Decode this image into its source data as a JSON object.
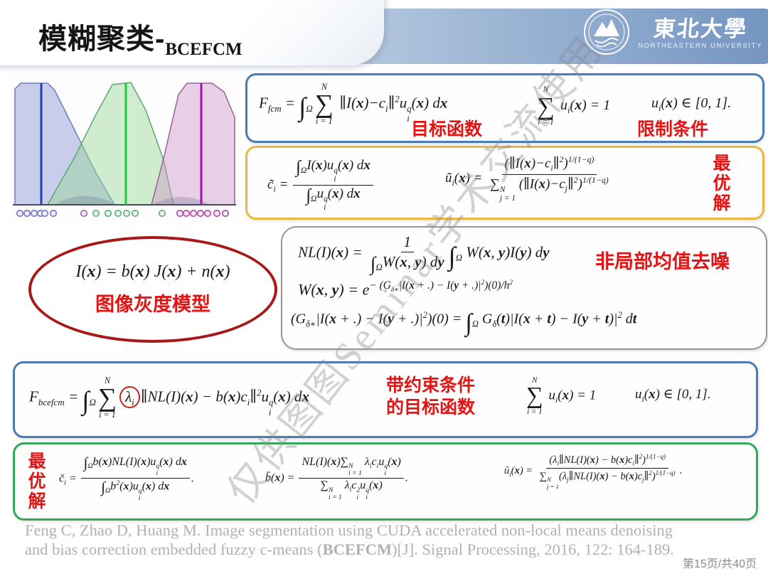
{
  "header": {
    "title": "模糊聚类-",
    "title_subscript": "BCEFCM",
    "logo": {
      "cn_name": "東北大學",
      "en_name": "NORTHEASTERN UNIVERSITY"
    }
  },
  "membership_chart": {
    "type": "area",
    "description": "three overlapping fuzzy membership functions with cluster center lines and data point markers",
    "series": [
      {
        "name": "cluster-1",
        "fill": "#8f9dd6",
        "center_line": "#2b3faf"
      },
      {
        "name": "cluster-2",
        "fill": "#9bd69b",
        "center_line": "#21c93f"
      },
      {
        "name": "cluster-3",
        "fill": "#cf9aca",
        "center_line": "#a512a5"
      }
    ]
  },
  "boxes": {
    "fcm": {
      "objective_formula": "F<sub>fcm</sub> = <span class='it'>∫</span><sub class='lo'>Ω</sub><span class='bigop'><span class='lm'>N</span><span class='op'>∑</span><span class='lm'>i = 1</span></span> ∥I(<b>x</b>)−c<sub>i</sub>∥<sup>2</sup>u<span class='ss'><span>q</span><span>i</span></span>(<b>x</b>) d<b>x</b>",
      "objective_label": "目标函数",
      "constraint_formula": "<span class='bigop'><span class='lm'>N</span><span class='op'>∑</span><span class='lm'>i = 1</span></span> u<sub>i</sub>(<b>x</b>) = 1",
      "constraint_label": "限制条件",
      "range_formula": "u<sub>i</sub>(<b>x</b>) ∈ [0, 1]."
    },
    "fcm_solution": {
      "label": "最优解",
      "c_formula": "c̃<sub>i</sub> = <span class='frac'><span class='num'><span class='sit'>∫</span><sub class='lo'>Ω</sub>I(<b>x</b>)u<span class='ss'><span>q</span><span>i</span></span>(<b>x</b>) d<b>x</b></span><span class='den'><span class='sit'>∫</span><sub class='lo'>Ω</sub>u<span class='ss'><span>q</span><span>i</span></span>(<b>x</b>) d<b>x</b></span></span>",
      "u_formula": "ũ<sub>i</sub>(<b>x</b>) = <span class='frac'><span class='num'>(∥I(<b>x</b>)−c<sub>i</sub>∥<sup>2</sup>)<sup>1/(1−q)</sup></span><span class='den'>∑<span class='ss'><span>N</span><span>j = 1</span></span> (∥I(<b>x</b>)−c<sub>j</sub>∥<sup>2</sup>)<sup>1/(1−q)</sup></span></span>"
    },
    "nlm": {
      "nl_formula": "NL(I)(<b>x</b>) = <span class='frac'><span class='num'>1</span><span class='den'><span class='sit'>∫</span><sub class='lo'>Ω</sub>W(<b>x</b>, <b>y</b>) d<b>y</b></span></span><span class='it'>∫</span><sub class='lo'>Ω</sub> W(<b>x</b>, <b>y</b>)I(<b>y</b>) d<b>y</b>",
      "label": "非局部均值去噪",
      "w_formula": "W(<b>x</b>, <b>y</b>) = e<sup class='wex'>− (G<sub>δ∗</sub>|I(<b>x</b> + .) − I(<b>y</b> + .)|<sup>2</sup>)(0)/h<sup>2</sup></sup>",
      "g_formula": "(G<sub>δ∗</sub>|I(<b>x</b> + .) − I(<b>y</b> + .)|<sup>2</sup>)(0) = <span class='it'>∫</span><sub class='lo'>Ω</sub> G<sub>δ</sub>(<b>t</b>)|I(<b>x</b> + <b>t</b>) − I(<b>y</b> + <b>t</b>)|<sup>2</sup> d<b>t</b>"
    },
    "bias_model": {
      "formula": "I(<b>x</b>) = b(<b>x</b>) J(<b>x</b>) + n(<b>x</b>)",
      "label": "图像灰度模型"
    },
    "bcefcm": {
      "formula": "F<sub>bcefcm</sub> = <span class='it'>∫</span><sub class='lo'>Ω</sub><span class='bigop'><span class='lm'>N</span><span class='op'>∑</span><span class='lm'>i = 1</span></span><span class='circ'>λ<sub>i</sub></span>∥NL(I)(<b>x</b>) − b(<b>x</b>)c<sub>i</sub>∥<sup>2</sup>u<span class='ss'><span>q</span><span>i</span></span>(<b>x</b>) d<b>x</b>",
      "label_line1": "带约束条件",
      "label_line2": "的目标函数",
      "constraint_formula": "<span class='bigop'><span class='lm'>N</span><span class='op'>∑</span><span class='lm'>i = 1</span></span> u<sub>i</sub>(<b>x</b>) = 1",
      "range_formula": "u<sub>i</sub>(<b>x</b>) ∈ [0, 1]."
    },
    "bcefcm_solution": {
      "label": "最优解",
      "c_formula": "c̆<sub>i</sub> = <span class='frac'><span class='num'><span class='sit'>∫</span><sub class='lo'>Ω</sub>b(<b>x</b>)NL(I)(<b>x</b>)u<span class='ss'><span>q</span><span>i</span></span>(<b>x</b>) d<b>x</b></span><span class='den'><span class='sit'>∫</span><sub class='lo'>Ω</sub>b<sup>2</sup>(<b>x</b>)u<span class='ss'><span>q</span><span>i</span></span>(<b>x</b>) d<b>x</b></span></span>.",
      "b_formula": "b̄(<b>x</b>) = <span class='frac'><span class='num'>NL(I)(<b>x</b>)∑<span class='ss'><span>N</span><span>i = 1</span></span> λ<sub>i</sub>c<sub>i</sub>u<span class='ss'><span>q</span><span>i</span></span>(<b>x</b>)</span><span class='den'>∑<span class='ss'><span>N</span><span>i = 1</span></span> λ<sub>i</sub>c<span class='ss'><span>2</span><span>i</span></span>u<span class='ss'><span>q</span><span>i</span></span>(<b>x</b>)</span></span>.",
      "u_formula": "ŭ<sub>i</sub>(<b>x</b>) = <span class='frac'><span class='num'>(λ<sub>i</sub>∥NL(I)(<b>x</b>) − b(<b>x</b>)c<sub>i</sub>∥<sup>2</sup>)<sup>1/(1−q)</sup></span><span class='den'>∑<span class='ss'><span>N</span><span>j = 1</span></span>(λ<sub>j</sub>∥NL(I)(<b>x</b>) − b(<b>x</b>)c<sub>j</sub>∥<sup>2</sup>)<sup>1/(1−q)</sup></span></span>."
    }
  },
  "watermark": "仅供图图Seminar学术交流使用",
  "footer": {
    "citation_line1": "Feng C, Zhao D, Huang M. Image segmentation using CUDA accelerated non-local means denoising",
    "citation_line2_html": "and bias correction embedded fuzzy c-means (<b>BCEFCM</b>)[J]. Signal Processing, 2016, 122: 164-189.",
    "page": "第15页/共40页"
  },
  "colors": {
    "header_band": "#7495c1",
    "blue_box_border": "#4a7ab8",
    "gold_box_border": "#e8b93e",
    "gray_box_border": "#979797",
    "green_box_border": "#33aa58",
    "red_label": "#e21414",
    "ellipse_border": "#a81818"
  }
}
